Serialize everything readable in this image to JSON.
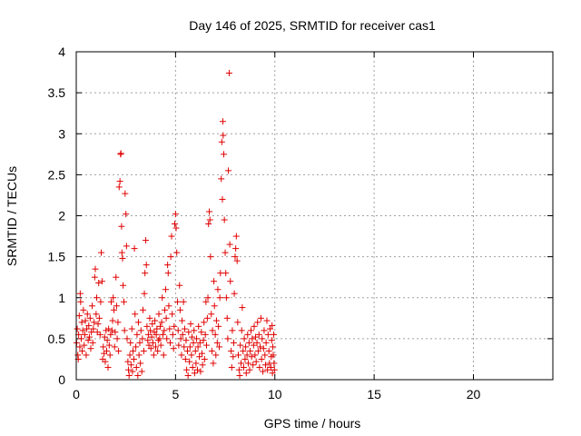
{
  "chart_data": {
    "type": "scatter",
    "title": "Day 146 of 2025, SRMTID for receiver cas1",
    "xlabel": "GPS time / hours",
    "ylabel": "SRMTID / TECUs",
    "xlim": [
      0,
      24
    ],
    "ylim": [
      0,
      4
    ],
    "xticks": [
      0,
      5,
      10,
      15,
      20
    ],
    "xtick_labels": [
      "0",
      "5",
      "10",
      "15",
      "20"
    ],
    "yticks": [
      0,
      0.5,
      1,
      1.5,
      2,
      2.5,
      3,
      3.5,
      4
    ],
    "ytick_labels": [
      "0",
      "0.5",
      "1",
      "1.5",
      "2",
      "2.5",
      "3",
      "3.5",
      "4"
    ],
    "grid": true,
    "marker": "+",
    "series": [
      {
        "name": "cas1",
        "color": "#e00000",
        "points": [
          [
            0.02,
            0.45
          ],
          [
            0.05,
            0.62
          ],
          [
            0.08,
            0.3
          ],
          [
            0.1,
            0.25
          ],
          [
            0.12,
            0.55
          ],
          [
            0.15,
            0.78
          ],
          [
            0.18,
            0.4
          ],
          [
            0.2,
            1.05
          ],
          [
            0.22,
            0.95
          ],
          [
            0.25,
            0.5
          ],
          [
            0.28,
            0.7
          ],
          [
            0.3,
            0.35
          ],
          [
            0.33,
            0.6
          ],
          [
            0.36,
            0.85
          ],
          [
            0.4,
            0.42
          ],
          [
            0.43,
            0.55
          ],
          [
            0.46,
            0.72
          ],
          [
            0.5,
            0.3
          ],
          [
            0.53,
            0.62
          ],
          [
            0.56,
            0.8
          ],
          [
            0.6,
            0.48
          ],
          [
            0.63,
            0.66
          ],
          [
            0.66,
            0.52
          ],
          [
            0.7,
            0.75
          ],
          [
            0.73,
            0.38
          ],
          [
            0.76,
            0.58
          ],
          [
            0.8,
            0.9
          ],
          [
            0.83,
            0.45
          ],
          [
            0.86,
            0.62
          ],
          [
            0.9,
            0.7
          ],
          [
            0.93,
            1.25
          ],
          [
            0.96,
            1.35
          ],
          [
            1.0,
            0.8
          ],
          [
            1.03,
            1.0
          ],
          [
            1.06,
            0.58
          ],
          [
            1.1,
            0.68
          ],
          [
            1.13,
            1.18
          ],
          [
            1.16,
            0.75
          ],
          [
            1.2,
            0.55
          ],
          [
            1.23,
            0.95
          ],
          [
            1.26,
            1.55
          ],
          [
            1.3,
            1.2
          ],
          [
            1.33,
            0.25
          ],
          [
            1.36,
            0.4
          ],
          [
            1.4,
            0.32
          ],
          [
            1.43,
            0.52
          ],
          [
            1.46,
            0.22
          ],
          [
            1.5,
            0.6
          ],
          [
            1.53,
            0.35
          ],
          [
            1.56,
            0.48
          ],
          [
            1.6,
            0.15
          ],
          [
            1.63,
            0.62
          ],
          [
            1.66,
            0.42
          ],
          [
            1.7,
            0.3
          ],
          [
            1.73,
            0.55
          ],
          [
            1.76,
            0.95
          ],
          [
            1.8,
            0.6
          ],
          [
            1.83,
            0.72
          ],
          [
            1.86,
            1.0
          ],
          [
            1.9,
            0.85
          ],
          [
            1.93,
            0.4
          ],
          [
            1.96,
            0.58
          ],
          [
            2.0,
            1.25
          ],
          [
            2.03,
            0.9
          ],
          [
            2.06,
            0.5
          ],
          [
            2.1,
            0.7
          ],
          [
            2.13,
            0.35
          ],
          [
            2.16,
            2.35
          ],
          [
            2.2,
            2.42
          ],
          [
            2.23,
            2.75
          ],
          [
            2.25,
            2.76
          ],
          [
            2.28,
            1.87
          ],
          [
            2.3,
            1.55
          ],
          [
            2.33,
            1.48
          ],
          [
            2.36,
            1.15
          ],
          [
            2.4,
            0.95
          ],
          [
            2.43,
            0.6
          ],
          [
            2.46,
            2.27
          ],
          [
            2.5,
            2.02
          ],
          [
            2.53,
            1.63
          ],
          [
            2.56,
            0.5
          ],
          [
            2.6,
            0.22
          ],
          [
            2.63,
            0.12
          ],
          [
            2.66,
            0.05
          ],
          [
            2.7,
            0.3
          ],
          [
            2.73,
            0.45
          ],
          [
            2.76,
            0.18
          ],
          [
            2.8,
            0.62
          ],
          [
            2.83,
            0.1
          ],
          [
            2.86,
            0.35
          ],
          [
            2.9,
            0.25
          ],
          [
            2.93,
            1.6
          ],
          [
            2.96,
            0.8
          ],
          [
            3.0,
            0.4
          ],
          [
            3.03,
            0.15
          ],
          [
            3.06,
            0.55
          ],
          [
            3.1,
            0.05
          ],
          [
            3.13,
            0.7
          ],
          [
            3.16,
            0.3
          ],
          [
            3.2,
            0.45
          ],
          [
            3.23,
            0.2
          ],
          [
            3.26,
            0.6
          ],
          [
            3.3,
            0.1
          ],
          [
            3.33,
            0.5
          ],
          [
            3.36,
            0.85
          ],
          [
            3.4,
            0.35
          ],
          [
            3.43,
            1.05
          ],
          [
            3.46,
            1.3
          ],
          [
            3.5,
            1.7
          ],
          [
            3.53,
            1.4
          ],
          [
            3.56,
            0.65
          ],
          [
            3.6,
            0.48
          ],
          [
            3.63,
            0.55
          ],
          [
            3.66,
            0.42
          ],
          [
            3.7,
            0.75
          ],
          [
            3.73,
            0.6
          ],
          [
            3.76,
            0.38
          ],
          [
            3.8,
            0.52
          ],
          [
            3.83,
            0.68
          ],
          [
            3.86,
            0.45
          ],
          [
            3.9,
            0.3
          ],
          [
            3.93,
            0.58
          ],
          [
            3.96,
            0.72
          ],
          [
            4.0,
            0.4
          ],
          [
            4.03,
            0.55
          ],
          [
            4.06,
            0.62
          ],
          [
            4.1,
            0.35
          ],
          [
            4.13,
            0.48
          ],
          [
            4.16,
            0.8
          ],
          [
            4.2,
            0.5
          ],
          [
            4.23,
            0.65
          ],
          [
            4.26,
            0.42
          ],
          [
            4.3,
            0.7
          ],
          [
            4.33,
            1.0
          ],
          [
            4.36,
            0.55
          ],
          [
            4.4,
            0.3
          ],
          [
            4.43,
            0.6
          ],
          [
            4.46,
            0.85
          ],
          [
            4.5,
            1.1
          ],
          [
            4.53,
            0.75
          ],
          [
            4.56,
            0.5
          ],
          [
            4.6,
            1.4
          ],
          [
            4.63,
            1.3
          ],
          [
            4.66,
            0.9
          ],
          [
            4.7,
            0.62
          ],
          [
            4.73,
            0.45
          ],
          [
            4.76,
            1.5
          ],
          [
            4.8,
            1.75
          ],
          [
            4.83,
            0.8
          ],
          [
            4.86,
            0.55
          ],
          [
            4.9,
            0.38
          ],
          [
            4.93,
            0.65
          ],
          [
            4.96,
            1.9
          ],
          [
            5.0,
            2.02
          ],
          [
            5.03,
            1.85
          ],
          [
            5.06,
            1.55
          ],
          [
            5.1,
            0.95
          ],
          [
            5.13,
            0.6
          ],
          [
            5.16,
            0.42
          ],
          [
            5.2,
            1.15
          ],
          [
            5.23,
            0.85
          ],
          [
            5.26,
            0.5
          ],
          [
            5.3,
            0.3
          ],
          [
            5.33,
            0.72
          ],
          [
            5.36,
            0.55
          ],
          [
            5.4,
            0.95
          ],
          [
            5.43,
            0.4
          ],
          [
            5.46,
            0.62
          ],
          [
            5.5,
            0.25
          ],
          [
            5.53,
            0.48
          ],
          [
            5.56,
            0.12
          ],
          [
            5.6,
            0.35
          ],
          [
            5.63,
            0.05
          ],
          [
            5.66,
            0.58
          ],
          [
            5.7,
            0.22
          ],
          [
            5.73,
            0.4
          ],
          [
            5.76,
            0.68
          ],
          [
            5.8,
            0.3
          ],
          [
            5.83,
            0.52
          ],
          [
            5.86,
            0.15
          ],
          [
            5.9,
            0.45
          ],
          [
            5.93,
            0.6
          ],
          [
            5.96,
            0.08
          ],
          [
            6.0,
            0.35
          ],
          [
            6.03,
            0.2
          ],
          [
            6.06,
            0.5
          ],
          [
            6.1,
            0.12
          ],
          [
            6.13,
            0.4
          ],
          [
            6.16,
            0.65
          ],
          [
            6.2,
            0.28
          ],
          [
            6.23,
            0.45
          ],
          [
            6.26,
            0.1
          ],
          [
            6.3,
            0.58
          ],
          [
            6.33,
            0.32
          ],
          [
            6.36,
            0.18
          ],
          [
            6.4,
            0.48
          ],
          [
            6.43,
            0.7
          ],
          [
            6.46,
            0.25
          ],
          [
            6.5,
            0.55
          ],
          [
            6.53,
            0.95
          ],
          [
            6.56,
            0.42
          ],
          [
            6.6,
            0.75
          ],
          [
            6.63,
            1.0
          ],
          [
            6.66,
            1.9
          ],
          [
            6.7,
            2.05
          ],
          [
            6.73,
            1.95
          ],
          [
            6.76,
            1.5
          ],
          [
            6.8,
            0.8
          ],
          [
            6.83,
            0.35
          ],
          [
            6.86,
            0.6
          ],
          [
            6.9,
            0.2
          ],
          [
            6.93,
            1.2
          ],
          [
            6.96,
            0.9
          ],
          [
            7.0,
            0.55
          ],
          [
            7.03,
            0.3
          ],
          [
            7.06,
            0.72
          ],
          [
            7.1,
            0.45
          ],
          [
            7.13,
            1.1
          ],
          [
            7.16,
            0.65
          ],
          [
            7.2,
            0.4
          ],
          [
            7.23,
            1.0
          ],
          [
            7.26,
            1.3
          ],
          [
            7.3,
            2.45
          ],
          [
            7.33,
            2.9
          ],
          [
            7.36,
            2.2
          ],
          [
            7.38,
            3.15
          ],
          [
            7.4,
            2.98
          ],
          [
            7.43,
            2.75
          ],
          [
            7.46,
            1.95
          ],
          [
            7.5,
            1.55
          ],
          [
            7.53,
            1.3
          ],
          [
            7.56,
            1.0
          ],
          [
            7.6,
            0.75
          ],
          [
            7.63,
            0.5
          ],
          [
            7.66,
            2.55
          ],
          [
            7.7,
            3.74
          ],
          [
            7.73,
            1.65
          ],
          [
            7.76,
            1.2
          ],
          [
            7.8,
            0.35
          ],
          [
            7.83,
            0.15
          ],
          [
            7.86,
            0.6
          ],
          [
            7.9,
            0.28
          ],
          [
            7.93,
            0.45
          ],
          [
            7.96,
            1.05
          ],
          [
            8.0,
            1.5
          ],
          [
            8.03,
            1.6
          ],
          [
            8.06,
            1.75
          ],
          [
            8.1,
            1.45
          ],
          [
            8.13,
            0.7
          ],
          [
            8.16,
            0.3
          ],
          [
            8.2,
            0.12
          ],
          [
            8.23,
            0.05
          ],
          [
            8.26,
            0.42
          ],
          [
            8.3,
            0.2
          ],
          [
            8.33,
            0.6
          ],
          [
            8.36,
            0.88
          ],
          [
            8.4,
            0.35
          ],
          [
            8.43,
            0.15
          ],
          [
            8.46,
            0.5
          ],
          [
            8.5,
            0.25
          ],
          [
            8.53,
            0.4
          ],
          [
            8.56,
            0.08
          ],
          [
            8.6,
            0.3
          ],
          [
            8.63,
            0.55
          ],
          [
            8.66,
            0.2
          ],
          [
            8.7,
            0.45
          ],
          [
            8.73,
            0.12
          ],
          [
            8.76,
            0.35
          ],
          [
            8.8,
            0.6
          ],
          [
            8.83,
            0.28
          ],
          [
            8.86,
            0.5
          ],
          [
            8.9,
            0.18
          ],
          [
            8.93,
            0.42
          ],
          [
            8.96,
            0.65
          ],
          [
            9.0,
            0.3
          ],
          [
            9.03,
            0.52
          ],
          [
            9.06,
            0.22
          ],
          [
            9.1,
            0.45
          ],
          [
            9.13,
            0.7
          ],
          [
            9.16,
            0.35
          ],
          [
            9.2,
            0.55
          ],
          [
            9.23,
            0.15
          ],
          [
            9.26,
            0.4
          ],
          [
            9.3,
            0.75
          ],
          [
            9.33,
            0.25
          ],
          [
            9.36,
            0.5
          ],
          [
            9.4,
            0.1
          ],
          [
            9.43,
            0.38
          ],
          [
            9.46,
            0.6
          ],
          [
            9.5,
            0.3
          ],
          [
            9.53,
            0.18
          ],
          [
            9.56,
            0.45
          ],
          [
            9.6,
            0.72
          ],
          [
            9.63,
            0.12
          ],
          [
            9.66,
            0.55
          ],
          [
            9.7,
            0.35
          ],
          [
            9.73,
            0.2
          ],
          [
            9.76,
            0.62
          ],
          [
            9.8,
            0.15
          ],
          [
            9.82,
            0.28
          ],
          [
            9.84,
            0.48
          ],
          [
            9.86,
            0.66
          ],
          [
            9.88,
            0.08
          ],
          [
            9.9,
            0.4
          ],
          [
            9.92,
            0.3
          ],
          [
            9.94,
            0.55
          ],
          [
            9.96,
            0.2
          ],
          [
            9.98,
            0.12
          ]
        ]
      }
    ]
  }
}
